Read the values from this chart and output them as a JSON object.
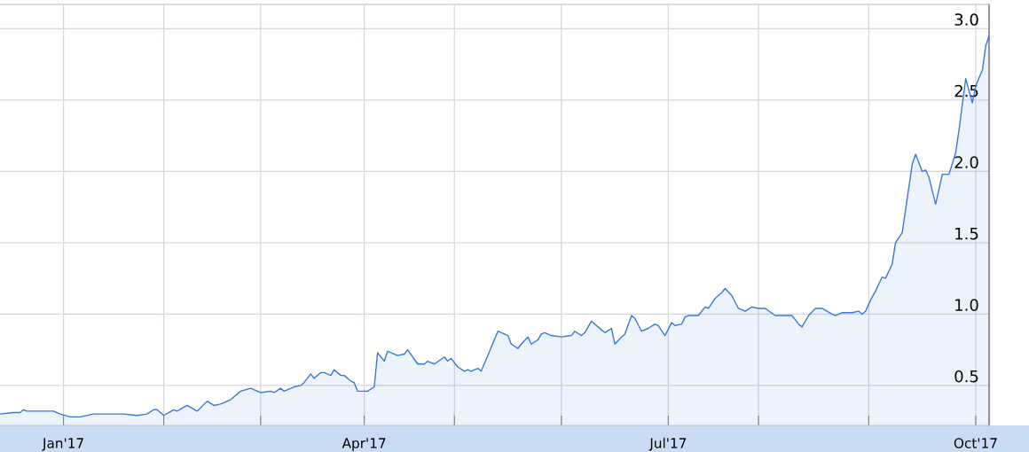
{
  "chart_data": {
    "type": "area",
    "x": [
      "2016-12-13",
      "2016-12-17",
      "2016-12-19",
      "2016-12-20",
      "2016-12-21",
      "2016-12-29",
      "2016-12-31",
      "2017-01-03",
      "2017-01-06",
      "2017-01-10",
      "2017-01-19",
      "2017-01-23",
      "2017-01-26",
      "2017-01-28",
      "2017-01-29",
      "2017-01-31",
      "2017-02-03",
      "2017-02-04",
      "2017-02-07",
      "2017-02-10",
      "2017-02-13",
      "2017-02-15",
      "2017-02-17",
      "2017-02-19",
      "2017-02-20",
      "2017-02-23",
      "2017-02-26",
      "2017-03-01",
      "2017-03-04",
      "2017-03-05",
      "2017-03-07",
      "2017-03-08",
      "2017-03-11",
      "2017-03-13",
      "2017-03-14",
      "2017-03-16",
      "2017-03-17",
      "2017-03-19",
      "2017-03-20",
      "2017-03-22",
      "2017-03-23",
      "2017-03-25",
      "2017-03-26",
      "2017-03-28",
      "2017-03-29",
      "2017-03-30",
      "2017-04-02",
      "2017-04-04",
      "2017-04-05",
      "2017-04-07",
      "2017-04-08",
      "2017-04-11",
      "2017-04-13",
      "2017-04-14",
      "2017-04-17",
      "2017-04-19",
      "2017-04-20",
      "2017-04-22",
      "2017-04-25",
      "2017-04-26",
      "2017-04-27",
      "2017-04-29",
      "2017-05-01",
      "2017-05-02",
      "2017-05-03",
      "2017-05-05",
      "2017-05-06",
      "2017-05-08",
      "2017-05-11",
      "2017-05-14",
      "2017-05-15",
      "2017-05-17",
      "2017-05-18",
      "2017-05-20",
      "2017-05-21",
      "2017-05-23",
      "2017-05-24",
      "2017-05-25",
      "2017-05-27",
      "2017-05-30",
      "2017-06-02",
      "2017-06-03",
      "2017-06-05",
      "2017-06-06",
      "2017-06-08",
      "2017-06-11",
      "2017-06-12",
      "2017-06-14",
      "2017-06-15",
      "2017-06-17",
      "2017-06-18",
      "2017-06-20",
      "2017-06-21",
      "2017-06-23",
      "2017-06-25",
      "2017-06-27",
      "2017-06-28",
      "2017-06-30",
      "2017-07-02",
      "2017-07-03",
      "2017-07-05",
      "2017-07-06",
      "2017-07-07",
      "2017-07-10",
      "2017-07-12",
      "2017-07-13",
      "2017-07-15",
      "2017-07-17",
      "2017-07-18",
      "2017-07-20",
      "2017-07-22",
      "2017-07-24",
      "2017-07-26",
      "2017-07-28",
      "2017-07-30",
      "2017-08-02",
      "2017-08-07",
      "2017-08-09",
      "2017-08-10",
      "2017-08-12",
      "2017-08-14",
      "2017-08-16",
      "2017-08-19",
      "2017-08-20",
      "2017-08-22",
      "2017-08-25",
      "2017-08-27",
      "2017-08-28",
      "2017-08-29",
      "2017-08-31",
      "2017-09-01",
      "2017-09-03",
      "2017-09-04",
      "2017-09-06",
      "2017-09-07",
      "2017-09-09",
      "2017-09-10",
      "2017-09-12",
      "2017-09-13",
      "2017-09-15",
      "2017-09-16",
      "2017-09-17",
      "2017-09-19",
      "2017-09-21",
      "2017-09-23",
      "2017-09-25",
      "2017-09-26",
      "2017-09-28",
      "2017-09-30",
      "2017-10-01",
      "2017-10-03",
      "2017-10-04",
      "2017-10-05"
    ],
    "series": [
      {
        "color": "#3a78d8",
        "values": [
          0.3,
          0.31,
          0.31,
          0.33,
          0.32,
          0.32,
          0.3,
          0.28,
          0.28,
          0.3,
          0.3,
          0.29,
          0.3,
          0.33,
          0.33,
          0.29,
          0.33,
          0.32,
          0.36,
          0.32,
          0.39,
          0.36,
          0.37,
          0.39,
          0.4,
          0.46,
          0.48,
          0.45,
          0.46,
          0.45,
          0.48,
          0.46,
          0.49,
          0.5,
          0.52,
          0.58,
          0.55,
          0.59,
          0.59,
          0.57,
          0.61,
          0.57,
          0.57,
          0.53,
          0.52,
          0.46,
          0.46,
          0.49,
          0.73,
          0.67,
          0.74,
          0.71,
          0.72,
          0.75,
          0.65,
          0.65,
          0.67,
          0.65,
          0.7,
          0.67,
          0.69,
          0.63,
          0.6,
          0.61,
          0.6,
          0.62,
          0.6,
          0.71,
          0.88,
          0.85,
          0.79,
          0.76,
          0.79,
          0.84,
          0.79,
          0.82,
          0.86,
          0.87,
          0.85,
          0.84,
          0.85,
          0.88,
          0.85,
          0.87,
          0.95,
          0.89,
          0.87,
          0.9,
          0.79,
          0.84,
          0.86,
          0.99,
          0.97,
          0.88,
          0.9,
          0.93,
          0.92,
          0.85,
          0.94,
          0.92,
          0.93,
          0.98,
          0.99,
          0.99,
          1.05,
          1.04,
          1.11,
          1.15,
          1.18,
          1.13,
          1.04,
          1.02,
          1.05,
          1.04,
          1.04,
          0.99,
          0.99,
          0.93,
          0.91,
          0.99,
          1.04,
          1.04,
          1.0,
          0.99,
          1.01,
          1.01,
          1.02,
          1.0,
          1.02,
          1.12,
          1.16,
          1.26,
          1.25,
          1.35,
          1.5,
          1.57,
          1.73,
          2.05,
          2.12,
          2.0,
          2.01,
          1.96,
          1.77,
          1.98,
          1.98,
          2.13,
          2.29,
          2.65,
          2.48,
          2.6,
          2.71,
          2.88,
          2.95
        ]
      }
    ],
    "xlim": [
      "2016-12-13",
      "2017-10-05"
    ],
    "xticks": [
      {
        "value": "2017-01-01",
        "label": "Jan'17"
      },
      {
        "value": "2017-01-31",
        "label": null
      },
      {
        "value": "2017-03-01",
        "label": null
      },
      {
        "value": "2017-04-01",
        "label": "Apr'17"
      },
      {
        "value": "2017-04-28",
        "label": null
      },
      {
        "value": "2017-05-30",
        "label": null
      },
      {
        "value": "2017-07-01",
        "label": "Jul'17"
      },
      {
        "value": "2017-07-28",
        "label": null
      },
      {
        "value": "2017-08-30",
        "label": null
      },
      {
        "value": "2017-10-01",
        "label": "Oct'17"
      }
    ],
    "ylim": [
      0.22,
      3.17
    ],
    "yticks": [
      {
        "value": 0.5,
        "label": "0.5"
      },
      {
        "value": 1,
        "label": "1.0"
      },
      {
        "value": 1.5,
        "label": "1.5"
      },
      {
        "value": 2,
        "label": "2.0"
      },
      {
        "value": 2.5,
        "label": "2.5"
      },
      {
        "value": 3,
        "label": "3.0"
      }
    ],
    "grid": true
  }
}
